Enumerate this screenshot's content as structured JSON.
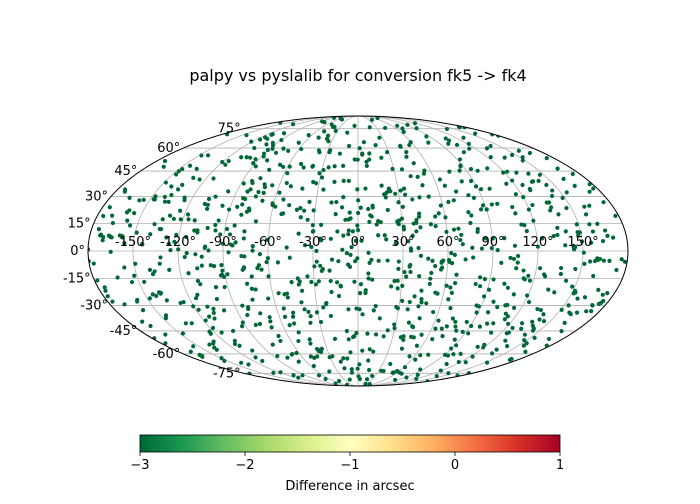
{
  "chart_data": {
    "type": "scatter",
    "projection": "mollweide",
    "title": "palpy vs pyslalib for conversion fk5 -> fk4",
    "xlabel": "",
    "ylabel": "",
    "grid": true,
    "lon_tick_labels": [
      "-150°",
      "-120°",
      "-90°",
      "-60°",
      "-30°",
      "0°",
      "30°",
      "60°",
      "90°",
      "120°",
      "150°"
    ],
    "lat_tick_labels": [
      "75°",
      "60°",
      "45°",
      "30°",
      "15°",
      "0°",
      "-15°",
      "-30°",
      "-45°",
      "-60°",
      "-75°"
    ],
    "lon_ticks_deg": [
      -150,
      -120,
      -90,
      -60,
      -30,
      0,
      30,
      60,
      90,
      120,
      150
    ],
    "lat_ticks_deg": [
      75,
      60,
      45,
      30,
      15,
      0,
      -15,
      -30,
      -45,
      -60,
      -75
    ],
    "point_color": "#006837",
    "point_value": -3,
    "point_count": 1000,
    "colorbar": {
      "label": "Difference in arcsec",
      "range": [
        -3,
        1
      ],
      "ticks": [
        -3,
        -2,
        -1,
        0,
        1
      ],
      "tick_labels": [
        "−3",
        "−2",
        "−1",
        "0",
        "1"
      ],
      "colormap": "RdYlGn_r",
      "stops": [
        "#006837",
        "#1a9850",
        "#66bd63",
        "#a6d96a",
        "#d9ef8b",
        "#ffffbf",
        "#fee08b",
        "#fdae61",
        "#f46d43",
        "#d73027",
        "#a50026"
      ]
    }
  }
}
